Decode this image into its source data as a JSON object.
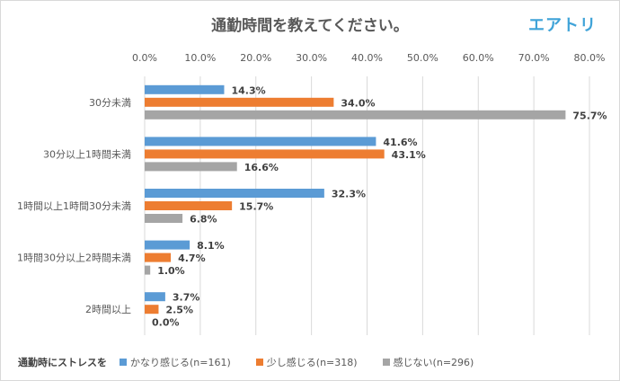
{
  "chart_data": {
    "type": "bar",
    "orientation": "horizontal",
    "title": "通勤時間を教えてください。",
    "logo": "エアトリ",
    "categories": [
      "30分未満",
      "30分以上1時間未満",
      "1時間以上1時間30分未満",
      "1時間30分以上2時間未満",
      "2時間以上"
    ],
    "series": [
      {
        "name": "かなり感じる(n=161)",
        "color": "#5b9bd5",
        "values": [
          14.3,
          41.6,
          32.3,
          8.1,
          3.7
        ]
      },
      {
        "name": "少し感じる(n=318)",
        "color": "#ed7d31",
        "values": [
          34.0,
          43.1,
          15.7,
          4.7,
          2.5
        ]
      },
      {
        "name": "感じない(n=296)",
        "color": "#a5a5a5",
        "values": [
          75.7,
          16.6,
          6.8,
          1.0,
          0.0
        ]
      }
    ],
    "xlim": [
      0,
      80
    ],
    "xticks": [
      "0.0%",
      "10.0%",
      "20.0%",
      "30.0%",
      "40.0%",
      "50.0%",
      "60.0%",
      "70.0%",
      "80.0%"
    ],
    "xaxis_position": "top",
    "grid": true,
    "legend": {
      "title": "通勤時にストレスを",
      "placement": "bottom"
    }
  }
}
